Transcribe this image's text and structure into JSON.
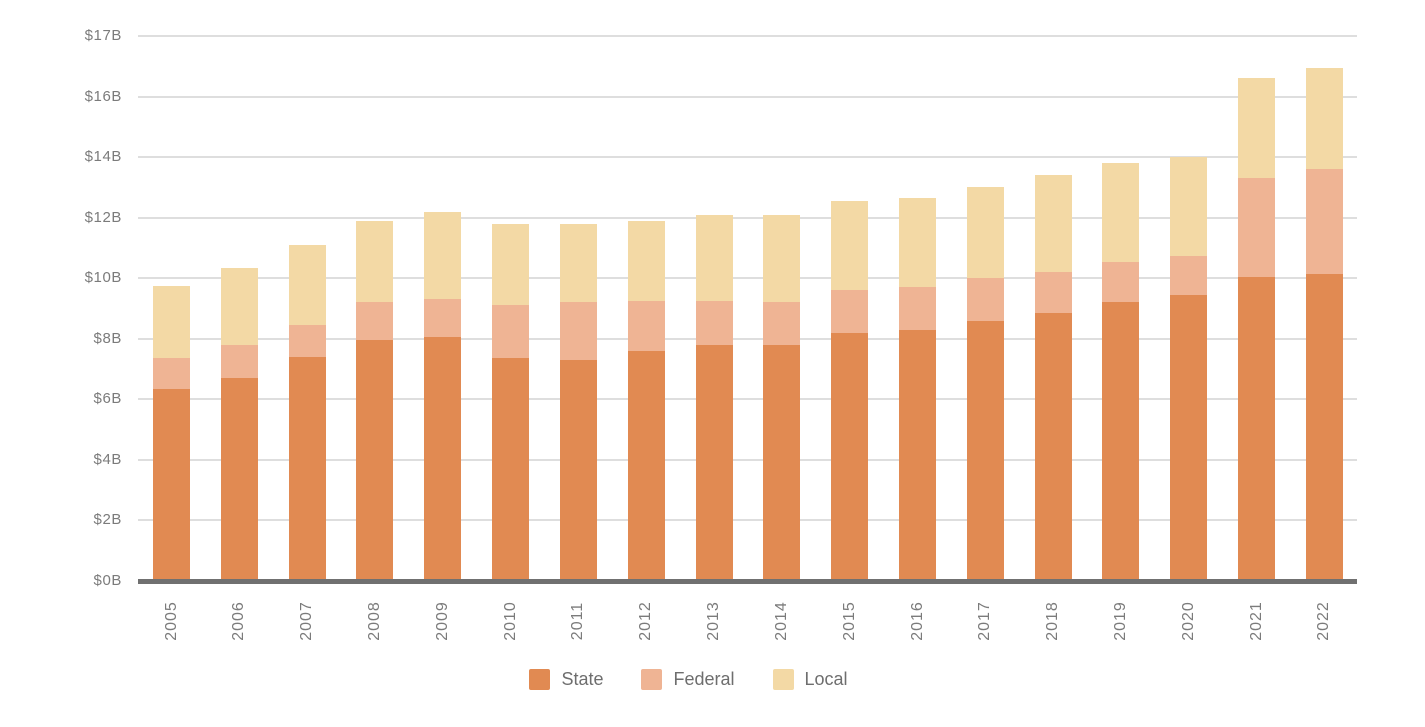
{
  "chart_data": {
    "type": "bar",
    "stacked": true,
    "categories": [
      "2005",
      "2006",
      "2007",
      "2008",
      "2009",
      "2010",
      "2011",
      "2012",
      "2013",
      "2014",
      "2015",
      "2016",
      "2017",
      "2018",
      "2019",
      "2020",
      "2021",
      "2022"
    ],
    "series": [
      {
        "name": "State",
        "color": "#E18A52",
        "values": [
          6.35,
          6.7,
          7.4,
          7.95,
          8.05,
          7.35,
          7.3,
          7.6,
          7.8,
          7.8,
          8.2,
          8.3,
          8.6,
          8.85,
          9.2,
          9.45,
          10.05,
          10.15
        ]
      },
      {
        "name": "Federal",
        "color": "#EFB494",
        "values": [
          1.0,
          1.1,
          1.05,
          1.25,
          1.25,
          1.75,
          1.9,
          1.65,
          1.45,
          1.4,
          1.4,
          1.4,
          1.4,
          1.35,
          1.35,
          1.3,
          3.25,
          3.45
        ]
      },
      {
        "name": "Local",
        "color": "#F3D9A5",
        "values": [
          2.4,
          2.55,
          2.65,
          2.7,
          2.9,
          2.7,
          2.6,
          2.65,
          2.85,
          2.9,
          2.95,
          2.95,
          3.0,
          3.2,
          3.25,
          3.25,
          3.3,
          3.35
        ]
      }
    ],
    "totals": [
      9.75,
      10.35,
      11.1,
      11.9,
      12.2,
      11.8,
      11.8,
      11.9,
      12.1,
      12.1,
      12.55,
      12.65,
      13.0,
      13.4,
      13.8,
      14.0,
      16.6,
      16.95
    ],
    "y_axis": {
      "unit": "$B",
      "tick_labels_top_to_bottom": [
        "$17B",
        "$16B",
        "$14B",
        "$12B",
        "$10B",
        "$8B",
        "$6B",
        "$4B",
        "$2B",
        "$0B"
      ],
      "tick_values_top_to_bottom": [
        17,
        16,
        14,
        12,
        10,
        8,
        6,
        4,
        2,
        0
      ]
    },
    "x_axis": {
      "label_rotation_deg": -90
    },
    "legend": {
      "position": "bottom",
      "entries": [
        "State",
        "Federal",
        "Local"
      ]
    },
    "grid": true,
    "colors": {
      "background": "#FFFFFF",
      "gridline": "#DEDEDE",
      "axis_line": "#707070",
      "tick_text": "#7B7B7B",
      "legend_text": "#6E6E6E"
    }
  }
}
